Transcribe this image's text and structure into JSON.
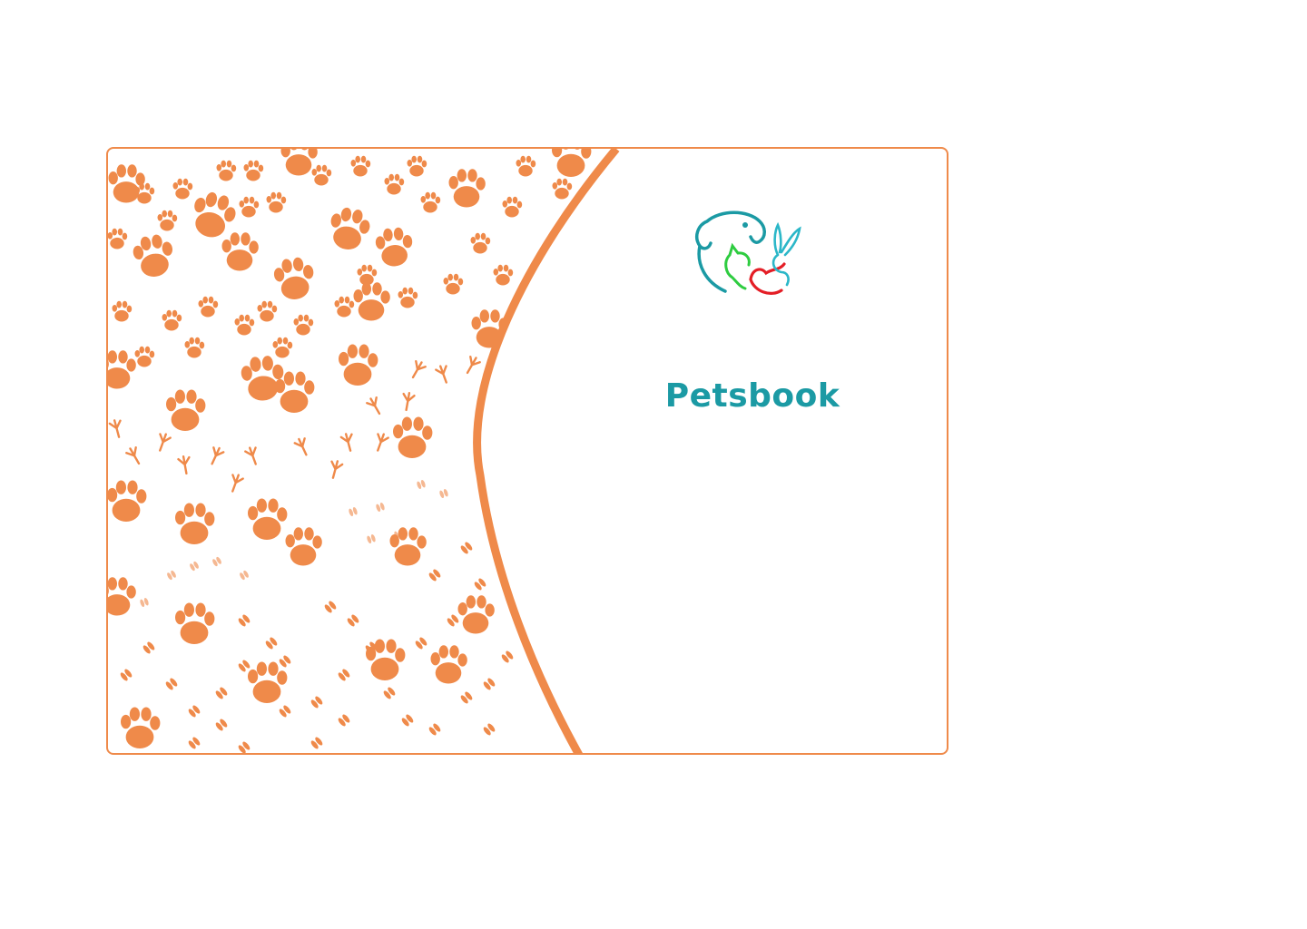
{
  "brand": {
    "name": "Petsbook",
    "name_color": "#1b9aa4",
    "logo_icon": "pets-logo-icon"
  },
  "colors": {
    "accent": "#ef8a4a",
    "logo_dog": "#1b9aa4",
    "logo_cat": "#2ecc40",
    "logo_bird": "#e41e26",
    "logo_rabbit": "#2bb7c8"
  },
  "decoration": {
    "pattern_icon": "paw-print-pattern"
  }
}
